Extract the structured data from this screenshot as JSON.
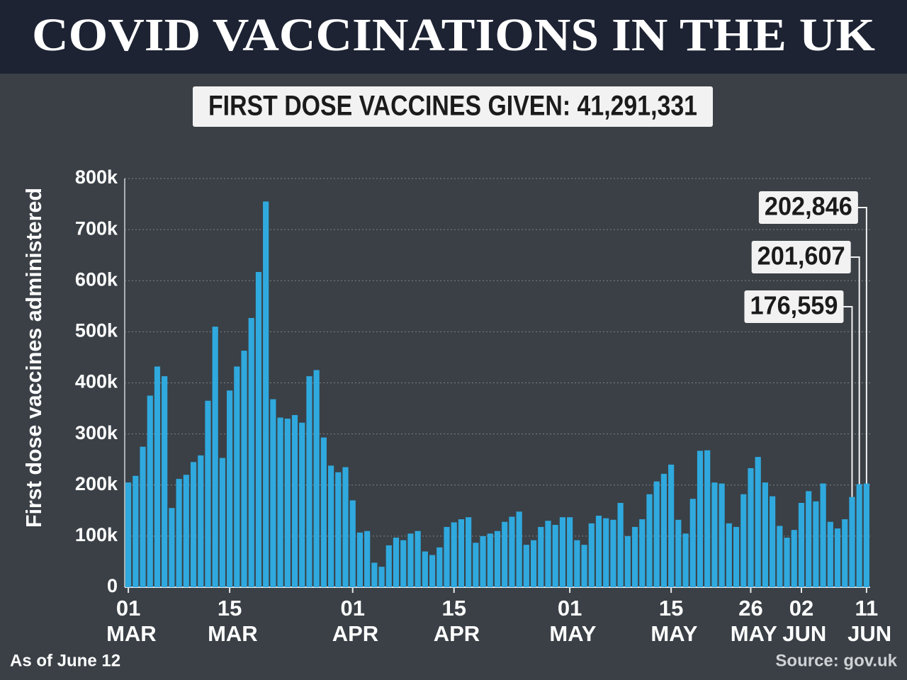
{
  "chart_data": {
    "type": "bar",
    "title": "COVID VACCINATIONS IN THE UK",
    "subtitle": "FIRST DOSE VACCINES GIVEN: 41,291,331",
    "y_label": "First dose vaccines administered",
    "footnote": "As of June 12",
    "source": "Source: gov.uk",
    "color": "#2fa9de",
    "grid": true,
    "ylim": [
      0,
      800000
    ],
    "yticks": [
      {
        "value": 0,
        "label": "0"
      },
      {
        "value": 100000,
        "label": "100k"
      },
      {
        "value": 200000,
        "label": "200k"
      },
      {
        "value": 300000,
        "label": "300k"
      },
      {
        "value": 400000,
        "label": "400k"
      },
      {
        "value": 500000,
        "label": "500k"
      },
      {
        "value": 600000,
        "label": "600k"
      },
      {
        "value": 700000,
        "label": "700k"
      },
      {
        "value": 800000,
        "label": "800k"
      }
    ],
    "categories": [
      "01 MAR",
      null,
      null,
      null,
      null,
      null,
      null,
      null,
      null,
      null,
      null,
      null,
      null,
      null,
      "15 MAR",
      null,
      null,
      null,
      null,
      null,
      null,
      null,
      null,
      null,
      null,
      null,
      null,
      null,
      null,
      null,
      null,
      "01 APR",
      null,
      null,
      null,
      null,
      null,
      null,
      null,
      null,
      null,
      null,
      null,
      null,
      null,
      "15 APR",
      null,
      null,
      null,
      null,
      null,
      null,
      null,
      null,
      null,
      null,
      null,
      null,
      null,
      null,
      null,
      "01 MAY",
      null,
      null,
      null,
      null,
      null,
      null,
      null,
      null,
      null,
      null,
      null,
      null,
      null,
      "15 MAY",
      null,
      null,
      null,
      null,
      null,
      null,
      null,
      null,
      null,
      null,
      "26 MAY",
      null,
      null,
      null,
      null,
      null,
      null,
      "02 JUN",
      null,
      null,
      null,
      null,
      null,
      null,
      null,
      null,
      "11 JUN"
    ],
    "values": [
      205000,
      218000,
      275000,
      375000,
      432000,
      413000,
      155000,
      212000,
      220000,
      245000,
      258000,
      365000,
      510000,
      253000,
      385000,
      432000,
      463000,
      527000,
      617000,
      755000,
      368000,
      332000,
      330000,
      337000,
      322000,
      413000,
      425000,
      293000,
      238000,
      225000,
      235000,
      170000,
      107000,
      110000,
      48000,
      40000,
      82000,
      97000,
      92000,
      105000,
      110000,
      70000,
      63000,
      78000,
      118000,
      127000,
      133000,
      137000,
      87000,
      100000,
      105000,
      110000,
      128000,
      138000,
      148000,
      83000,
      92000,
      118000,
      130000,
      122000,
      137000,
      137000,
      92000,
      83000,
      125000,
      140000,
      135000,
      132000,
      165000,
      100000,
      118000,
      133000,
      182000,
      207000,
      222000,
      240000,
      132000,
      105000,
      173000,
      267000,
      268000,
      205000,
      203000,
      125000,
      118000,
      182000,
      233000,
      255000,
      205000,
      178000,
      120000,
      97000,
      112000,
      165000,
      188000,
      168000,
      203000,
      128000,
      115000,
      133000,
      176559,
      201607,
      202846
    ],
    "value_labels": [
      null,
      null,
      null,
      null,
      null,
      null,
      null,
      null,
      null,
      null,
      null,
      null,
      null,
      null,
      null,
      null,
      null,
      null,
      null,
      null,
      null,
      null,
      null,
      null,
      null,
      null,
      null,
      null,
      null,
      null,
      null,
      null,
      null,
      null,
      null,
      null,
      null,
      null,
      null,
      null,
      null,
      null,
      null,
      null,
      null,
      null,
      null,
      null,
      null,
      null,
      null,
      null,
      null,
      null,
      null,
      null,
      null,
      null,
      null,
      null,
      null,
      null,
      null,
      null,
      null,
      null,
      null,
      null,
      null,
      null,
      null,
      null,
      null,
      null,
      null,
      null,
      null,
      null,
      null,
      null,
      null,
      null,
      null,
      null,
      null,
      null,
      null,
      null,
      null,
      null,
      null,
      null,
      null,
      null,
      null,
      null,
      null,
      null,
      null,
      null,
      "176,559",
      "201,607",
      "202,846"
    ]
  }
}
